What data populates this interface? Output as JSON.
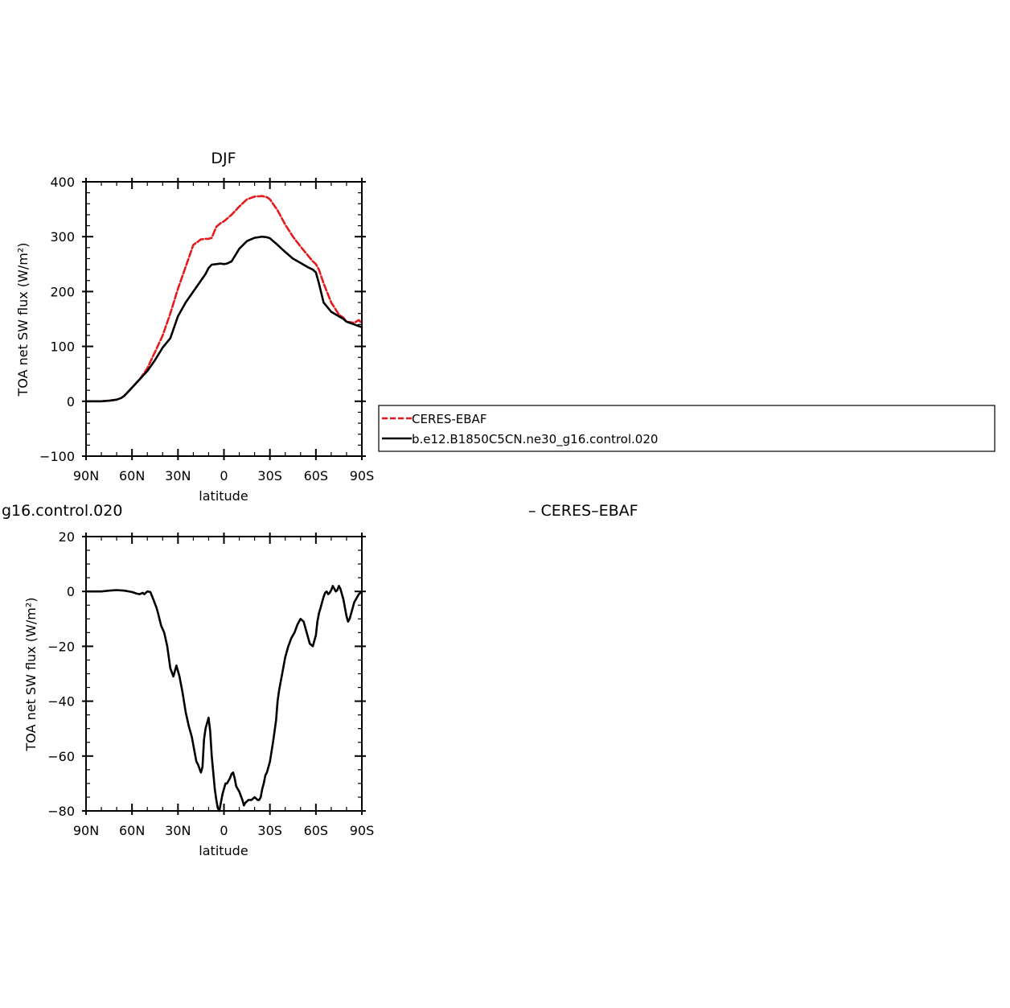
{
  "chart_data": [
    {
      "type": "line",
      "title": "DJF",
      "xlabel": "latitude",
      "ylabel": "TOA net SW flux (W/m²)",
      "ylim": [
        -100,
        400
      ],
      "yticks": [
        "−100",
        "0",
        "100",
        "200",
        "300",
        "400"
      ],
      "yticks_values": [
        -100,
        0,
        100,
        200,
        300,
        400
      ],
      "xlim": [
        90,
        -90
      ],
      "xticks": [
        "90N",
        "60N",
        "30N",
        "0",
        "30S",
        "60S",
        "90S"
      ],
      "xticks_values": [
        90,
        60,
        30,
        0,
        -30,
        -60,
        -90
      ],
      "grid": false,
      "legend_position": "right",
      "x_convention": "latitude in degrees, positive = North, negative = South",
      "series": [
        {
          "name": "CERES-EBAF",
          "color": "#e41a1c",
          "style": "dashed",
          "x": [
            90,
            80,
            75,
            70,
            67,
            65,
            60,
            55,
            50,
            45,
            40,
            35,
            30,
            25,
            20,
            15,
            12,
            10,
            8,
            5,
            2,
            0,
            -5,
            -10,
            -15,
            -20,
            -25,
            -28,
            -30,
            -35,
            -40,
            -45,
            -50,
            -55,
            -58,
            -60,
            -62,
            -65,
            -70,
            -75,
            -78,
            -80,
            -85,
            -88,
            -90
          ],
          "y": [
            0,
            0,
            1,
            3,
            6,
            10,
            25,
            40,
            60,
            90,
            120,
            160,
            205,
            245,
            285,
            295,
            296,
            296,
            298,
            318,
            325,
            328,
            340,
            355,
            368,
            373,
            374,
            372,
            368,
            348,
            322,
            300,
            282,
            265,
            255,
            250,
            240,
            215,
            180,
            158,
            152,
            145,
            143,
            148,
            142
          ]
        },
        {
          "name": "b.e12.B1850C5CN.ne30_g16.control.020",
          "color": "#000000",
          "style": "solid",
          "x": [
            90,
            80,
            75,
            70,
            67,
            65,
            60,
            55,
            50,
            45,
            40,
            35,
            30,
            25,
            20,
            15,
            12,
            10,
            8,
            5,
            2,
            0,
            -2,
            -5,
            -10,
            -15,
            -20,
            -25,
            -28,
            -30,
            -35,
            -40,
            -45,
            -50,
            -55,
            -58,
            -60,
            -62,
            -65,
            -70,
            -75,
            -78,
            -80,
            -85,
            -88,
            -90
          ],
          "y": [
            0,
            0,
            1,
            3,
            6,
            10,
            25,
            40,
            55,
            75,
            98,
            115,
            155,
            180,
            200,
            220,
            232,
            243,
            249,
            250,
            251,
            250,
            251,
            255,
            278,
            292,
            298,
            300,
            299,
            297,
            285,
            272,
            260,
            252,
            244,
            240,
            235,
            215,
            180,
            163,
            155,
            150,
            145,
            140,
            137,
            135
          ]
        }
      ]
    },
    {
      "type": "line",
      "title_left": "g16.control.020",
      "title_right": "– CERES–EBAF",
      "xlabel": "latitude",
      "ylabel": "TOA net SW flux (W/m²)",
      "ylim": [
        -80,
        20
      ],
      "yticks": [
        "−80",
        "−60",
        "−40",
        "−20",
        "0",
        "20"
      ],
      "yticks_values": [
        -80,
        -60,
        -40,
        -20,
        0,
        20
      ],
      "xlim": [
        90,
        -90
      ],
      "xticks": [
        "90N",
        "60N",
        "30N",
        "0",
        "30S",
        "60S",
        "90S"
      ],
      "xticks_values": [
        90,
        60,
        30,
        0,
        -30,
        -60,
        -90
      ],
      "grid": false,
      "series": [
        {
          "color": "#000000",
          "style": "solid",
          "x": [
            90,
            80,
            75,
            70,
            65,
            60,
            57,
            55,
            53,
            52,
            50,
            48,
            46,
            44,
            43,
            41,
            39,
            37,
            35,
            33,
            31,
            29,
            27,
            25,
            23,
            21,
            19,
            18,
            17,
            15,
            14,
            13,
            12,
            11,
            10,
            9,
            8,
            7,
            6,
            5,
            4,
            3,
            2,
            1,
            0,
            -1,
            -2,
            -3,
            -4,
            -5,
            -6,
            -7,
            -8,
            -10,
            -12,
            -13,
            -14,
            -15,
            -16,
            -17,
            -18,
            -19,
            -20,
            -21,
            -22,
            -23,
            -24,
            -25,
            -26,
            -27,
            -28,
            -30,
            -32,
            -34,
            -35,
            -36,
            -37,
            -38,
            -39,
            -40,
            -42,
            -44,
            -46,
            -48,
            -50,
            -52,
            -54,
            -56,
            -58,
            -60,
            -61,
            -62,
            -63,
            -64,
            -65,
            -66,
            -67,
            -68,
            -69,
            -70,
            -71,
            -72,
            -73,
            -74,
            -75,
            -76,
            -77,
            -78,
            -79,
            -80,
            -81,
            -82,
            -83,
            -84,
            -85,
            -86,
            -87,
            -88,
            -89,
            -90
          ],
          "y": [
            0,
            0,
            0.3,
            0.5,
            0.3,
            -0.2,
            -0.8,
            -1,
            -0.5,
            -1,
            0,
            -0.2,
            -3,
            -6,
            -8,
            -12.5,
            -15,
            -20,
            -28,
            -31,
            -27,
            -31,
            -37,
            -44,
            -49,
            -53,
            -59,
            -62,
            -63,
            -66,
            -64,
            -54,
            -50,
            -48,
            -46,
            -51,
            -60,
            -66,
            -72,
            -76,
            -79,
            -80,
            -77,
            -74,
            -72,
            -70,
            -70,
            -69,
            -68,
            -66.5,
            -66,
            -68,
            -71,
            -73,
            -76,
            -78,
            -77,
            -76.5,
            -76,
            -76,
            -76,
            -75.5,
            -75,
            -75.5,
            -76,
            -76,
            -75,
            -72,
            -70,
            -67,
            -66,
            -62,
            -55,
            -47,
            -40,
            -36,
            -33,
            -30,
            -27,
            -24,
            -20,
            -17,
            -15,
            -12,
            -10,
            -11,
            -15,
            -19,
            -20,
            -16,
            -11,
            -8,
            -6,
            -4,
            -2,
            -0.5,
            0,
            -1,
            -0.5,
            0.5,
            2,
            1,
            0,
            0.5,
            2,
            1,
            -1,
            -3,
            -6,
            -9,
            -11,
            -10,
            -8,
            -6,
            -4,
            -3,
            -2,
            -1,
            -0.5,
            0
          ]
        }
      ]
    }
  ]
}
